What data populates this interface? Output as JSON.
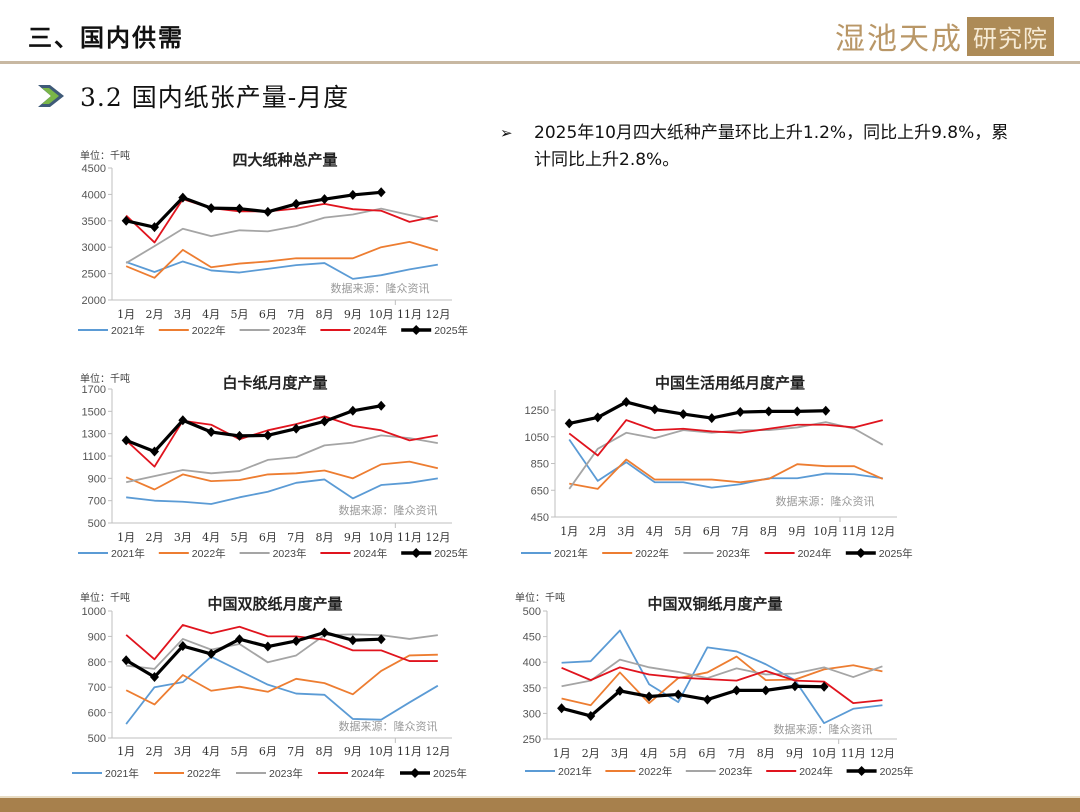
{
  "header": {
    "section_title": "三、国内供需",
    "logo_text": "湿池天成",
    "logo_box_text": "研究院",
    "colors": {
      "brand": "#a7804c",
      "arrow_fill": "#7ab648",
      "arrow_border": "#3f5a78"
    }
  },
  "subheading": {
    "title": "3.2 国内纸张产量-月度",
    "icon": "double-chevron-right-icon"
  },
  "summary": {
    "bullet_icon": "arrow-bullet-icon",
    "bullet_glyph": "➢",
    "text": "2025年10月四大纸种产量环比上升1.2%，同比上升9.8%，累计同比上升2.8%。"
  },
  "chart_data": [
    {
      "id": "total",
      "type": "line",
      "title": "四大纸种总产量",
      "unit_label": "单位：千吨",
      "source": "数据来源：隆众资讯",
      "categories": [
        "1月",
        "2月",
        "3月",
        "4月",
        "5月",
        "6月",
        "7月",
        "8月",
        "9月",
        "10月",
        "11月",
        "12月"
      ],
      "ylim": [
        2000,
        4500
      ],
      "yticks": [
        2000,
        2500,
        3000,
        3500,
        4000,
        4500
      ],
      "legend_position": "bottom",
      "series": [
        {
          "name": "2021年",
          "color": "#5b9bd5",
          "values": [
            2720,
            2530,
            2730,
            2560,
            2520,
            2590,
            2660,
            2700,
            2400,
            2470,
            2580,
            2670
          ]
        },
        {
          "name": "2022年",
          "color": "#ed7d31",
          "values": [
            2640,
            2420,
            2950,
            2620,
            2690,
            2730,
            2790,
            2790,
            2790,
            3000,
            3100,
            2940
          ]
        },
        {
          "name": "2023年",
          "color": "#a5a5a5",
          "values": [
            2700,
            3020,
            3350,
            3210,
            3320,
            3300,
            3400,
            3560,
            3620,
            3730,
            3610,
            3490
          ]
        },
        {
          "name": "2024年",
          "color": "#e0141e",
          "values": [
            3600,
            3090,
            3910,
            3740,
            3680,
            3680,
            3730,
            3820,
            3720,
            3690,
            3480,
            3590
          ]
        },
        {
          "name": "2025年",
          "color": "#000000",
          "marker": true,
          "values": [
            3500,
            3380,
            3940,
            3740,
            3730,
            3670,
            3820,
            3910,
            3990,
            4040,
            null,
            null
          ]
        }
      ]
    },
    {
      "id": "white-cardboard",
      "type": "line",
      "title": "白卡纸月度产量",
      "unit_label": "单位：千吨",
      "source": "数据来源：隆众资讯",
      "categories": [
        "1月",
        "2月",
        "3月",
        "4月",
        "5月",
        "6月",
        "7月",
        "8月",
        "9月",
        "10月",
        "11月",
        "12月"
      ],
      "ylim": [
        500,
        1700
      ],
      "yticks": [
        500,
        700,
        900,
        1100,
        1300,
        1500,
        1700
      ],
      "legend_position": "bottom",
      "series": [
        {
          "name": "2021年",
          "color": "#5b9bd5",
          "values": [
            730,
            700,
            690,
            670,
            730,
            780,
            860,
            890,
            720,
            840,
            860,
            900
          ]
        },
        {
          "name": "2022年",
          "color": "#ed7d31",
          "values": [
            910,
            800,
            935,
            875,
            885,
            935,
            945,
            970,
            900,
            1025,
            1050,
            990
          ]
        },
        {
          "name": "2023年",
          "color": "#a5a5a5",
          "values": [
            865,
            920,
            975,
            945,
            965,
            1065,
            1090,
            1195,
            1220,
            1285,
            1260,
            1215
          ]
        },
        {
          "name": "2024年",
          "color": "#e0141e",
          "values": [
            1240,
            1005,
            1415,
            1380,
            1250,
            1330,
            1385,
            1455,
            1370,
            1330,
            1240,
            1285
          ]
        },
        {
          "name": "2025年",
          "color": "#000000",
          "marker": true,
          "values": [
            1240,
            1140,
            1420,
            1315,
            1280,
            1285,
            1345,
            1410,
            1505,
            1550,
            null,
            null
          ]
        }
      ]
    },
    {
      "id": "tissue",
      "type": "line",
      "title": "中国生活用纸月度产量",
      "unit_label": "",
      "source": "数据来源：隆众资讯",
      "categories": [
        "1月",
        "2月",
        "3月",
        "4月",
        "5月",
        "6月",
        "7月",
        "8月",
        "9月",
        "10月",
        "11月",
        "12月"
      ],
      "ylim": [
        450,
        1400
      ],
      "yticks": [
        450,
        650,
        850,
        1050,
        1250
      ],
      "legend_position": "bottom",
      "series": [
        {
          "name": "2021年",
          "color": "#5b9bd5",
          "values": [
            1030,
            720,
            860,
            710,
            710,
            670,
            695,
            740,
            740,
            775,
            770,
            740
          ]
        },
        {
          "name": "2022年",
          "color": "#ed7d31",
          "values": [
            700,
            660,
            880,
            730,
            730,
            730,
            710,
            735,
            845,
            830,
            830,
            735
          ]
        },
        {
          "name": "2023年",
          "color": "#a5a5a5",
          "values": [
            660,
            960,
            1080,
            1040,
            1100,
            1080,
            1100,
            1100,
            1120,
            1160,
            1110,
            990
          ]
        },
        {
          "name": "2024年",
          "color": "#e0141e",
          "values": [
            1075,
            910,
            1175,
            1100,
            1110,
            1090,
            1080,
            1110,
            1140,
            1140,
            1120,
            1175
          ]
        },
        {
          "name": "2025年",
          "color": "#000000",
          "marker": true,
          "values": [
            1150,
            1195,
            1310,
            1255,
            1220,
            1190,
            1235,
            1240,
            1240,
            1245,
            null,
            null
          ]
        }
      ]
    },
    {
      "id": "offset",
      "type": "line",
      "title": "中国双胶纸月度产量",
      "unit_label": "单位：千吨",
      "source": "数据来源：隆众资讯",
      "categories": [
        "1月",
        "2月",
        "3月",
        "4月",
        "5月",
        "6月",
        "7月",
        "8月",
        "9月",
        "10月",
        "11月",
        "12月"
      ],
      "ylim": [
        500,
        1000
      ],
      "yticks": [
        500,
        600,
        700,
        800,
        900,
        1000
      ],
      "legend_position": "bottom",
      "series": [
        {
          "name": "2021年",
          "color": "#5b9bd5",
          "values": [
            555,
            700,
            720,
            820,
            765,
            710,
            675,
            670,
            575,
            572,
            640,
            706
          ]
        },
        {
          "name": "2022年",
          "color": "#ed7d31",
          "values": [
            688,
            632,
            748,
            686,
            702,
            682,
            733,
            716,
            672,
            764,
            825,
            828
          ]
        },
        {
          "name": "2023年",
          "color": "#a5a5a5",
          "values": [
            785,
            772,
            890,
            848,
            870,
            798,
            825,
            905,
            908,
            905,
            890,
            905
          ]
        },
        {
          "name": "2024年",
          "color": "#e0141e",
          "values": [
            906,
            810,
            945,
            912,
            938,
            900,
            900,
            887,
            845,
            845,
            803,
            803
          ]
        },
        {
          "name": "2025年",
          "color": "#000000",
          "marker": true,
          "values": [
            806,
            740,
            862,
            831,
            889,
            860,
            882,
            915,
            885,
            889,
            null,
            null
          ]
        }
      ]
    },
    {
      "id": "coated",
      "type": "line",
      "title": "中国双铜纸月度产量",
      "unit_label": "单位：千吨",
      "source": "数据来源：隆众资讯",
      "categories": [
        "1月",
        "2月",
        "3月",
        "4月",
        "5月",
        "6月",
        "7月",
        "8月",
        "9月",
        "10月",
        "11月",
        "12月"
      ],
      "ylim": [
        250,
        500
      ],
      "yticks": [
        250,
        300,
        350,
        400,
        450,
        500
      ],
      "legend_position": "bottom",
      "series": [
        {
          "name": "2021年",
          "color": "#5b9bd5",
          "values": [
            399,
            402,
            462,
            357,
            322,
            429,
            421,
            396,
            365,
            281,
            309,
            316
          ]
        },
        {
          "name": "2022年",
          "color": "#ed7d31",
          "values": [
            329,
            316,
            380,
            320,
            369,
            380,
            411,
            365,
            366,
            386,
            394,
            382
          ]
        },
        {
          "name": "2023年",
          "color": "#a5a5a5",
          "values": [
            353,
            364,
            405,
            390,
            381,
            369,
            388,
            376,
            378,
            390,
            371,
            392
          ]
        },
        {
          "name": "2024年",
          "color": "#e0141e",
          "values": [
            389,
            365,
            390,
            376,
            370,
            367,
            364,
            383,
            364,
            362,
            320,
            326
          ]
        },
        {
          "name": "2025年",
          "color": "#000000",
          "marker": true,
          "values": [
            310,
            295,
            344,
            333,
            337,
            327,
            345,
            345,
            353,
            352,
            null,
            null
          ]
        }
      ]
    }
  ]
}
